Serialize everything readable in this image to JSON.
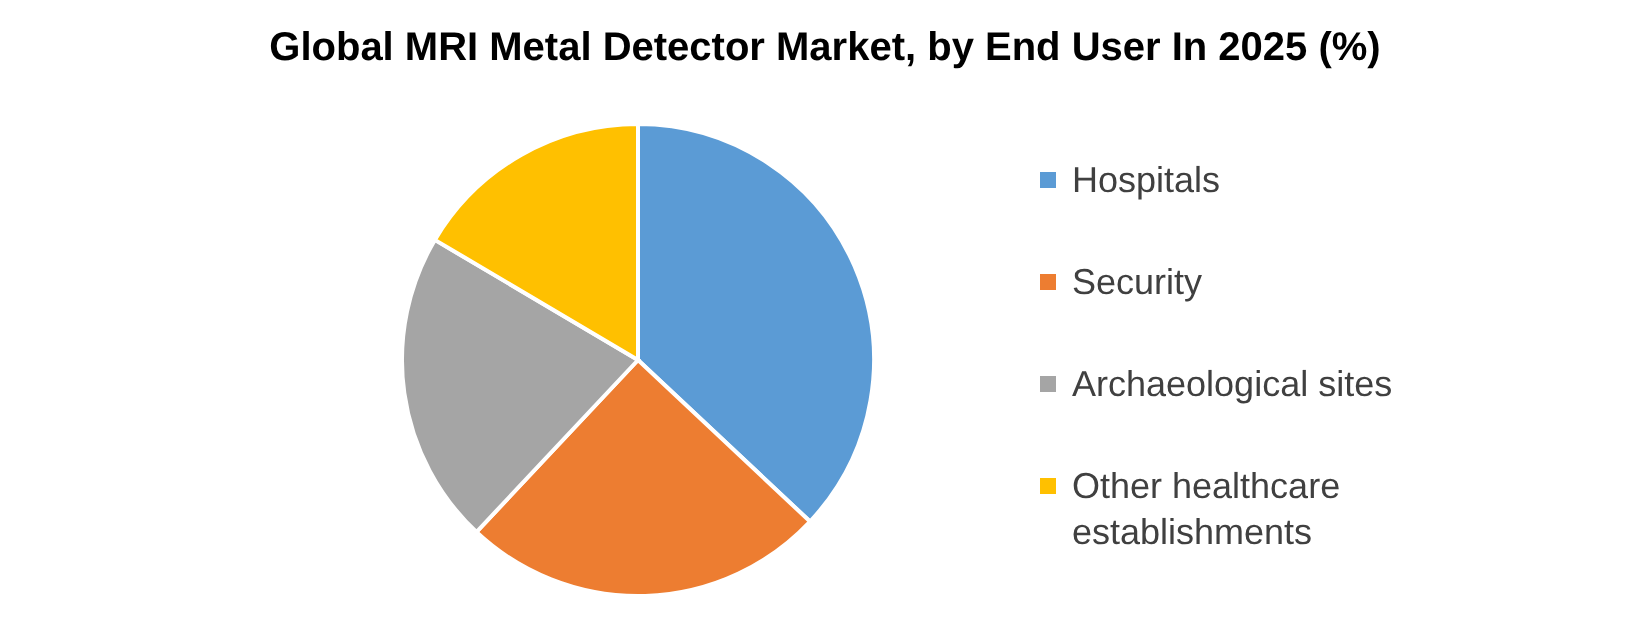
{
  "chart_data": {
    "type": "pie",
    "title": "Global MRI Metal Detector Market, by End User In 2025 (%)",
    "categories": [
      "Hospitals",
      "Security",
      "Archaeological sites",
      "Other healthcare establishments"
    ],
    "values": [
      37,
      25,
      21.5,
      16.5
    ],
    "colors": [
      "#5b9bd5",
      "#ed7d31",
      "#a5a5a5",
      "#ffc000"
    ],
    "legend": "right"
  }
}
